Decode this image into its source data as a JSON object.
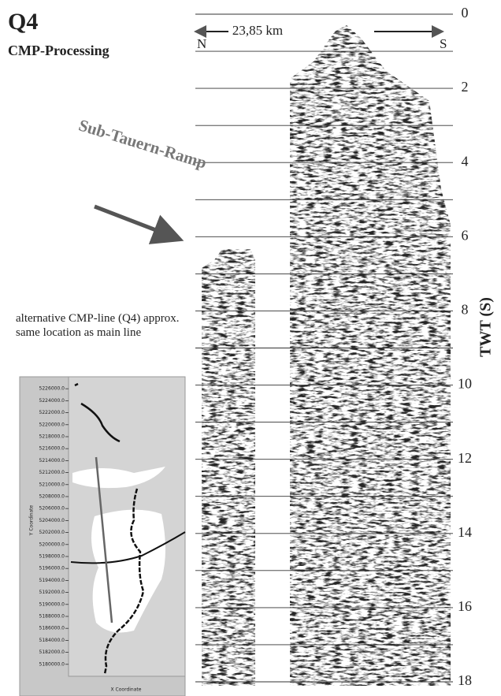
{
  "chart_data": {
    "type": "seismic-section",
    "title": "Q4",
    "subtitle": "CMP-Processing",
    "annotation": "Sub-Tauern-Ramp",
    "note": "alternative CMP-line (Q4) approx. same location as main line",
    "scale_label": "23,85 km",
    "left_label": "N",
    "right_label": "S",
    "ylabel": "TWT (S)",
    "ylim": [
      0,
      18
    ],
    "yticks": [
      0,
      2,
      4,
      6,
      8,
      10,
      12,
      14,
      16,
      18
    ],
    "minor_yticks": [
      1,
      3,
      5,
      7,
      9,
      11,
      13,
      15,
      17
    ],
    "inset": {
      "ylabel": "Y Coordinate",
      "xlabel": "X Coordinate",
      "ylim": [
        5178000,
        5228000
      ],
      "yticks": [
        {
          "value": 5226000,
          "label": "5226000.0"
        },
        {
          "value": 5224000,
          "label": "5224000.0"
        },
        {
          "value": 5222000,
          "label": "5222000.0"
        },
        {
          "value": 5220000,
          "label": "5220000.0"
        },
        {
          "value": 5218000,
          "label": "5218000.0"
        },
        {
          "value": 5216000,
          "label": "5216000.0"
        },
        {
          "value": 5214000,
          "label": "5214000.0"
        },
        {
          "value": 5212000,
          "label": "5212000.0"
        },
        {
          "value": 5210000,
          "label": "5210000.0"
        },
        {
          "value": 5208000,
          "label": "5208000.0"
        },
        {
          "value": 5206000,
          "label": "5206000.0"
        },
        {
          "value": 5204000,
          "label": "5204000.0"
        },
        {
          "value": 5202000,
          "label": "5202000.0"
        },
        {
          "value": 5200000,
          "label": "5200000.0"
        },
        {
          "value": 5198000,
          "label": "5198000.0"
        },
        {
          "value": 5196000,
          "label": "5196000.0"
        },
        {
          "value": 5194000,
          "label": "5194000.0"
        },
        {
          "value": 5192000,
          "label": "5192000.0"
        },
        {
          "value": 5190000,
          "label": "5190000.0"
        },
        {
          "value": 5188000,
          "label": "5188000.0"
        },
        {
          "value": 5186000,
          "label": "5186000.0"
        },
        {
          "value": 5184000,
          "label": "5184000.0"
        },
        {
          "value": 5182000,
          "label": "5182000.0"
        },
        {
          "value": 5180000,
          "label": "5180000.0"
        }
      ]
    }
  }
}
